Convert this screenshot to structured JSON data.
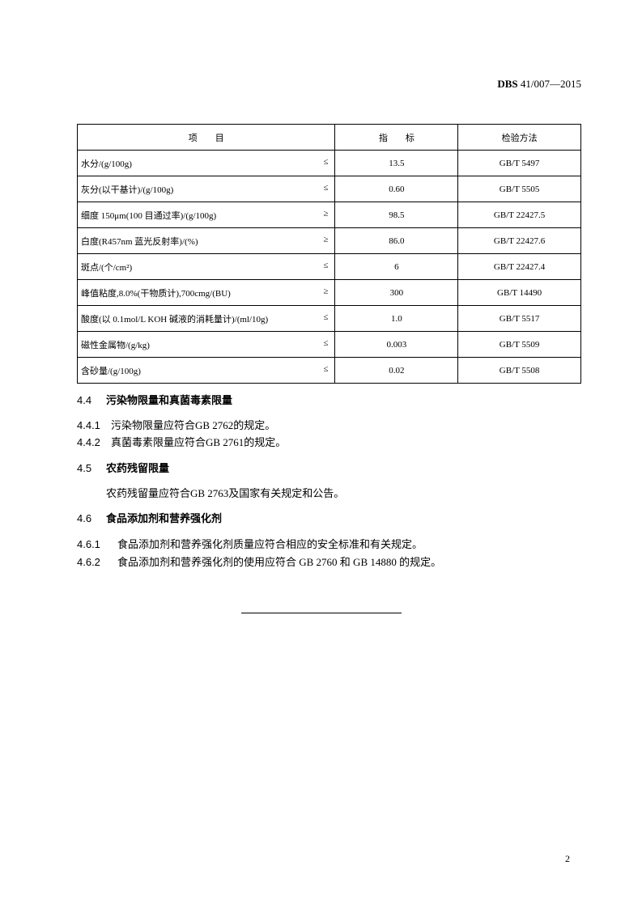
{
  "header": {
    "code_bold": "DBS",
    "code_rest": " 41/007—2015"
  },
  "table": {
    "headers": [
      "项　　目",
      "指　　标",
      "检验方法"
    ],
    "rows": [
      {
        "item": "水分/(g/100g)",
        "op": "≤",
        "value": "13.5",
        "method": "GB/T 5497"
      },
      {
        "item": "灰分(以干基计)/(g/100g)",
        "op": "≤",
        "value": "0.60",
        "method": "GB/T 5505"
      },
      {
        "item": "细度 150μm(100 目通过率)/(g/100g)",
        "op": "≥",
        "value": "98.5",
        "method": "GB/T 22427.5"
      },
      {
        "item": "白度(R457nm 蓝光反射率)/(%)",
        "op": "≥",
        "value": "86.0",
        "method": "GB/T 22427.6"
      },
      {
        "item": "斑点/(个/cm²)",
        "op": "≤",
        "value": "6",
        "method": "GB/T 22427.4"
      },
      {
        "item": "峰值粘度,8.0%(干物质计),700cmg/(BU)",
        "op": "≥",
        "value": "300",
        "method": "GB/T 14490"
      },
      {
        "item": "酸度(以 0.1mol/L KOH 碱液的消耗量计)/(ml/10g)",
        "op": "≤",
        "value": "1.0",
        "method": "GB/T 5517"
      },
      {
        "item": "磁性金属物/(g/kg)",
        "op": "≤",
        "value": "0.003",
        "method": "GB/T 5509"
      },
      {
        "item": "含砂量/(g/100g)",
        "op": "≤",
        "value": "0.02",
        "method": "GB/T 5508"
      }
    ]
  },
  "sections": {
    "s44": {
      "num": "4.4",
      "title": "污染物限量和真菌毒素限量"
    },
    "p441": {
      "num": "4.4.1",
      "text": "污染物限量应符合GB 2762的规定。"
    },
    "p442": {
      "num": "4.4.2",
      "text": "真菌毒素限量应符合GB 2761的规定。"
    },
    "s45": {
      "num": "4.5",
      "title": "农药残留限量"
    },
    "p45": {
      "text": "农药残留量应符合GB 2763及国家有关规定和公告。"
    },
    "s46": {
      "num": "4.6",
      "title": "食品添加剂和营养强化剂"
    },
    "p461": {
      "num": "4.6.1",
      "text": "食品添加剂和营养强化剂质量应符合相应的安全标准和有关规定。"
    },
    "p462": {
      "num": "4.6.2",
      "text": "食品添加剂和营养强化剂的使用应符合 GB 2760 和 GB 14880 的规定。"
    }
  },
  "page_number": "2"
}
